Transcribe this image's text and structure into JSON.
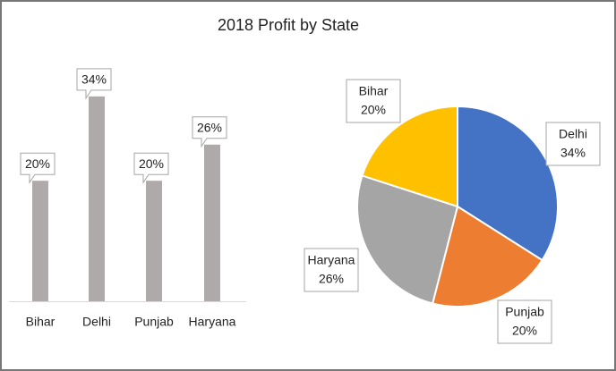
{
  "chart_data": [
    {
      "type": "bar",
      "title": "2018 Profit by State",
      "categories": [
        "Bihar",
        "Delhi",
        "Punjab",
        "Haryana"
      ],
      "values": [
        20,
        34,
        20,
        26
      ],
      "value_labels": [
        "20%",
        "34%",
        "20%",
        "26%"
      ],
      "color": "#aeaaaa"
    },
    {
      "type": "pie",
      "categories": [
        "Delhi",
        "Punjab",
        "Haryana",
        "Bihar"
      ],
      "values": [
        34,
        20,
        26,
        20
      ],
      "value_labels": [
        "34%",
        "20%",
        "26%",
        "20%"
      ],
      "colors": [
        "#4472c4",
        "#ed7d31",
        "#a5a5a5",
        "#ffc000"
      ]
    }
  ]
}
